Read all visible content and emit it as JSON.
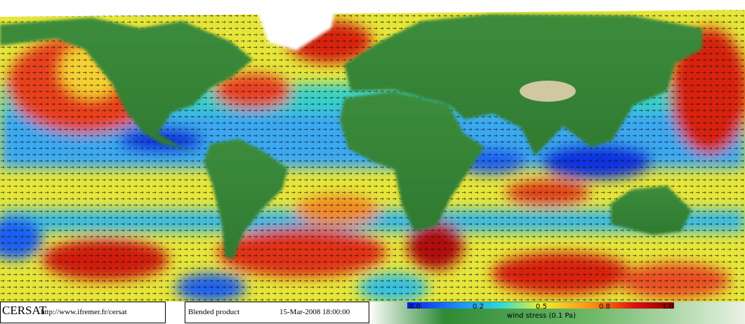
{
  "footer": {
    "logo": "CERSAT",
    "url": "http://www.ifremer.fr/cersat",
    "product": "Blended product",
    "datetime": "15-Mar-2008 18:00:00"
  },
  "colorbar": {
    "ticks": [
      "0.0",
      "0.2",
      "0.5",
      "0.8",
      "1.0"
    ],
    "label": "wind stress (0.1 Pa)"
  }
}
